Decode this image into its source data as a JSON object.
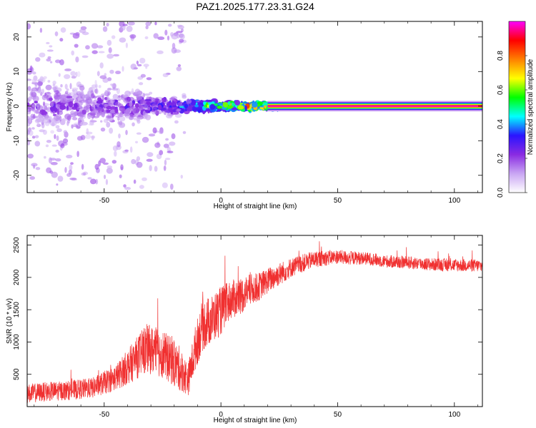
{
  "title": "PAZ1.2025.177.23.31.G24",
  "chart_data": [
    {
      "type": "heatmap",
      "xlabel": "Height of straight line (km)",
      "ylabel": "Frequency (Hz)",
      "xlim": [
        -83,
        112
      ],
      "ylim": [
        -25,
        24.5
      ],
      "xticks": [
        -50,
        0,
        50,
        100
      ],
      "yticks": [
        -20,
        -10,
        0,
        10,
        20
      ],
      "colorbar": {
        "label": "Normalized spectral amplitude",
        "range": [
          0,
          1
        ],
        "ticks": [
          "0.0",
          "0.2",
          "0.4",
          "0.6",
          "0.8"
        ],
        "colors": [
          "#ffffff",
          "#c9a6f3",
          "#8a2be2",
          "#2a14ff",
          "#00ffff",
          "#00ff00",
          "#ffff00",
          "#ff8000",
          "#ff0000",
          "#ff00ff"
        ]
      },
      "signal_band": {
        "x_from": 20,
        "x_to": 112,
        "frequency_center": 0,
        "amplitude": 1.0
      },
      "profile": [
        {
          "x": -80,
          "freq_spread": 8,
          "peak": 0.25
        },
        {
          "x": -60,
          "freq_spread": 6,
          "peak": 0.25
        },
        {
          "x": -40,
          "freq_spread": 4,
          "peak": 0.3
        },
        {
          "x": -20,
          "freq_spread": 2,
          "peak": 0.4
        },
        {
          "x": -15,
          "freq_spread": 1.5,
          "peak": 0.5
        },
        {
          "x": 0,
          "freq_spread": 1,
          "peak": 0.8
        },
        {
          "x": 20,
          "freq_spread": 0.8,
          "peak": 0.95
        },
        {
          "x": 112,
          "freq_spread": 0.8,
          "peak": 1.0
        }
      ]
    },
    {
      "type": "line",
      "xlabel": "Height of straight line (km)",
      "ylabel": "SNR (10 * v/v)",
      "xlim": [
        -83,
        112
      ],
      "ylim": [
        0,
        2650
      ],
      "xticks": [
        -50,
        0,
        50,
        100
      ],
      "yticks": [
        500,
        1000,
        1500,
        2000,
        2500
      ],
      "color": "#f03030",
      "x": [
        -83,
        -75,
        -65,
        -55,
        -45,
        -38,
        -32,
        -25,
        -18,
        -14,
        -11,
        -8,
        -4,
        0,
        4,
        8,
        12,
        16,
        20,
        25,
        30,
        35,
        40,
        45,
        50,
        55,
        60,
        65,
        70,
        80,
        90,
        100,
        112
      ],
      "values": [
        200,
        230,
        250,
        290,
        450,
        680,
        900,
        820,
        600,
        420,
        900,
        1250,
        1350,
        1480,
        1650,
        1700,
        1800,
        1850,
        1950,
        2050,
        2150,
        2220,
        2280,
        2300,
        2320,
        2300,
        2300,
        2280,
        2250,
        2230,
        2200,
        2190,
        2180
      ],
      "noise": [
        150,
        150,
        150,
        160,
        200,
        300,
        380,
        380,
        350,
        250,
        350,
        400,
        380,
        380,
        300,
        300,
        250,
        220,
        200,
        180,
        150,
        140,
        130,
        120,
        110,
        110,
        100,
        100,
        100,
        100,
        100,
        100,
        100
      ]
    }
  ]
}
